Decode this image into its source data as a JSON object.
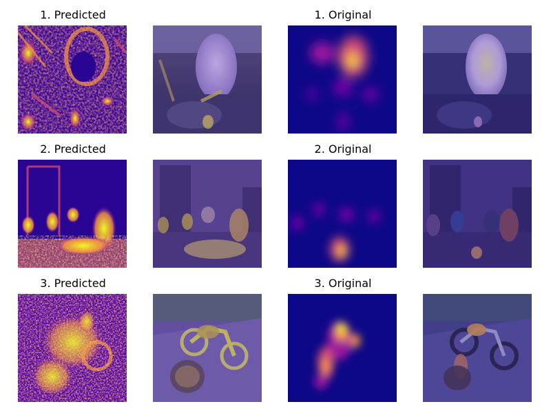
{
  "figure": {
    "rows": [
      {
        "predicted_title": "1. Predicted",
        "original_title": "1. Original",
        "scene": "car-interior-airbag"
      },
      {
        "predicted_title": "2. Predicted",
        "original_title": "2. Original",
        "scene": "people-at-table"
      },
      {
        "predicted_title": "3. Predicted",
        "original_title": "3. Original",
        "scene": "motorcycle"
      }
    ],
    "colormap": "plasma",
    "colors": {
      "background": "#ffffff",
      "map_low": "#0d0887",
      "map_mid": "#cc4778",
      "map_high": "#f0f921"
    }
  }
}
